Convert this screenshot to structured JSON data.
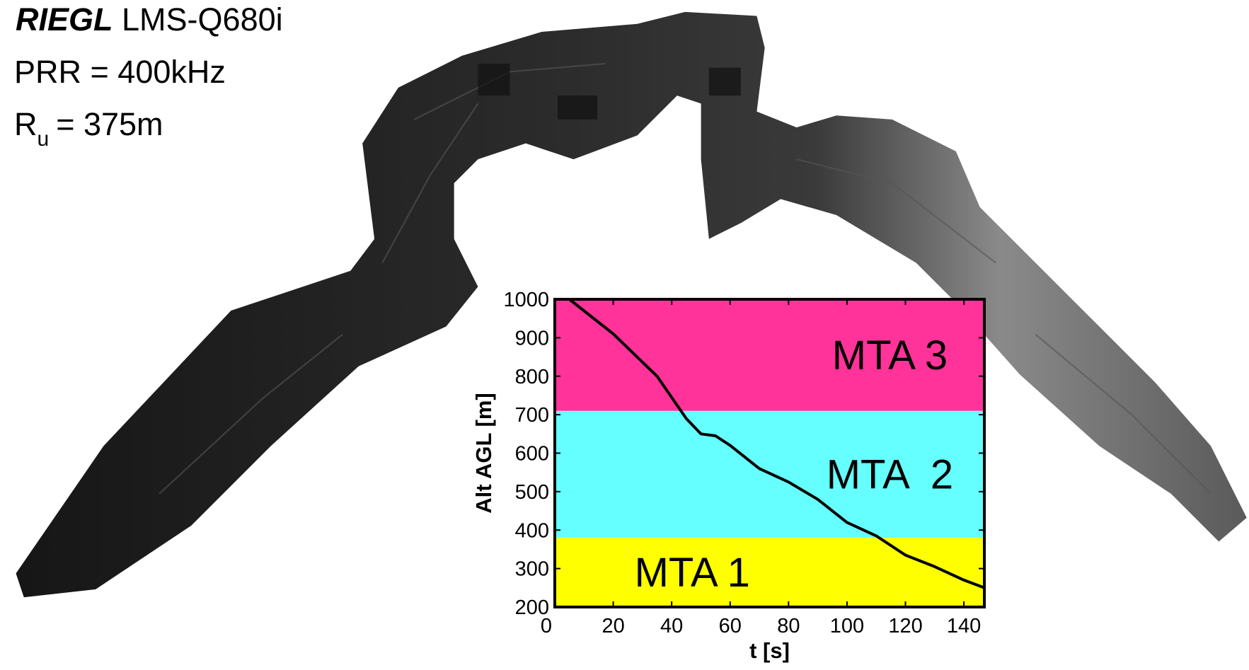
{
  "header": {
    "brand": "RIEGL",
    "model": "LMS-Q680i",
    "prr": "PRR = 400kHz",
    "range_symbol": "R",
    "range_subscript": "u",
    "range_value": "= 375m"
  },
  "chart_data": {
    "type": "line",
    "xlabel": "t [s]",
    "ylabel": "Alt AGL [m]",
    "x": [
      5,
      20,
      35,
      45,
      50,
      55,
      60,
      70,
      80,
      90,
      100,
      110,
      120,
      130,
      140,
      147
    ],
    "values": [
      1000,
      910,
      800,
      690,
      650,
      645,
      620,
      560,
      525,
      480,
      420,
      385,
      335,
      305,
      270,
      250
    ],
    "color": "#000000",
    "xlim": [
      0,
      147
    ],
    "xticks": [
      0,
      20,
      40,
      60,
      80,
      100,
      120,
      140
    ],
    "ylim": [
      200,
      1000
    ],
    "yticks": [
      200,
      300,
      400,
      500,
      600,
      700,
      800,
      900,
      1000
    ],
    "bands": [
      {
        "name": "MTA 1",
        "color": "#ffff00",
        "from": 200,
        "to": 380
      },
      {
        "name": "MTA  2",
        "color": "#66ffff",
        "from": 380,
        "to": 710
      },
      {
        "name": "MTA 3",
        "color": "#ff3399",
        "from": 710,
        "to": 1000
      }
    ]
  }
}
